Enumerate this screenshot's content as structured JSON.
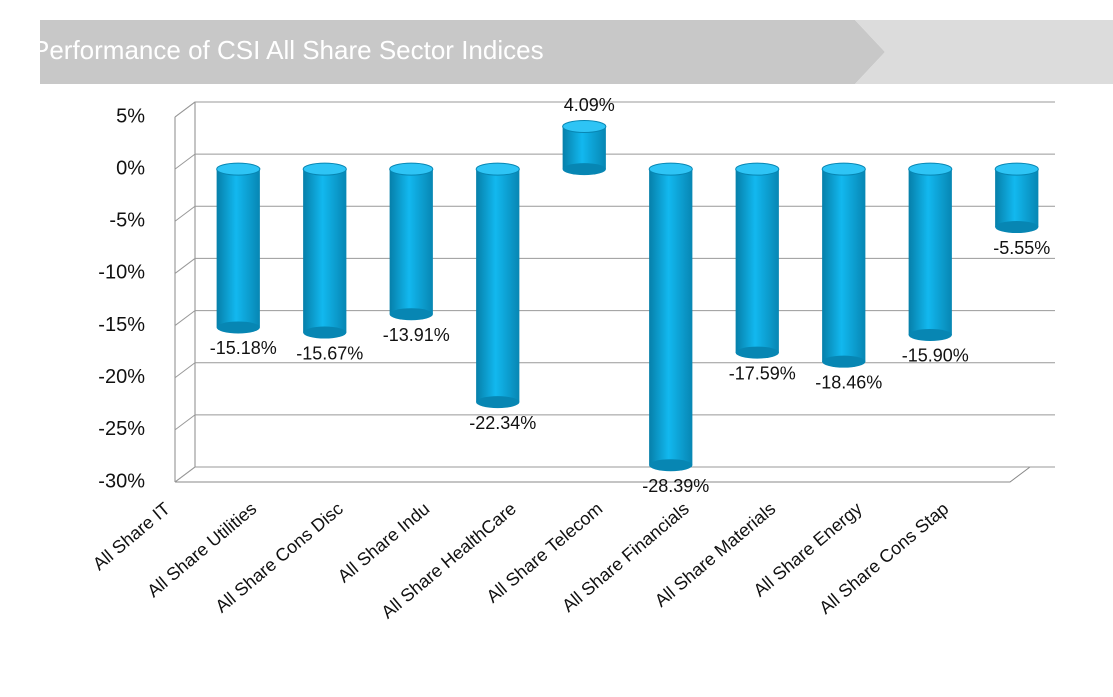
{
  "chart_data": {
    "type": "bar",
    "title": "Performance of CSI All Share Sector Indices",
    "categories": [
      "All Share IT",
      "All Share Utilities",
      "All Share Cons Disc",
      "All Share Indu",
      "All Share HealthCare",
      "All Share Telecom",
      "All Share Financials",
      "All Share Materials",
      "All Share Energy",
      "All Share Cons Stap"
    ],
    "values": [
      -15.18,
      -15.67,
      -13.91,
      -22.34,
      4.09,
      -28.39,
      -17.59,
      -18.46,
      -15.9,
      -5.55
    ],
    "value_labels": [
      "-15.18%",
      "-15.67%",
      "-13.91%",
      "-22.34%",
      "4.09%",
      "-28.39%",
      "-17.59%",
      "-18.46%",
      "-15.90%",
      "-5.55%"
    ],
    "color": "#0aa6dc",
    "ylim": [
      -30,
      5
    ],
    "yticks": [
      {
        "value": 5,
        "label": "5%"
      },
      {
        "value": 0,
        "label": "0%"
      },
      {
        "value": -5,
        "label": "-5%"
      },
      {
        "value": -10,
        "label": "-10%"
      },
      {
        "value": -15,
        "label": "-15%"
      },
      {
        "value": -20,
        "label": "-20%"
      },
      {
        "value": -25,
        "label": "-25%"
      },
      {
        "value": -30,
        "label": "-30%"
      }
    ],
    "grid": true
  }
}
